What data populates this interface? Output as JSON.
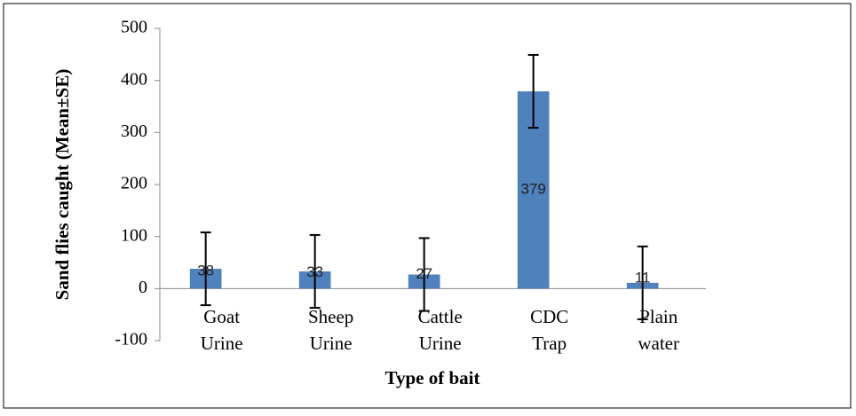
{
  "chart_data": {
    "type": "bar",
    "y_label": "Sand flies caught (Mean±SE)",
    "x_label": "Type of bait",
    "categories": [
      [
        "Goat",
        "Urine"
      ],
      [
        "Sheep",
        "Urine"
      ],
      [
        "Cattle",
        "Urine"
      ],
      [
        "CDC",
        "Trap"
      ],
      [
        "Plain",
        "water"
      ]
    ],
    "values": [
      38,
      33,
      27,
      379,
      11
    ],
    "errors": [
      70,
      70,
      70,
      70,
      70
    ],
    "color": "#4f81bd",
    "ylim": [
      -100,
      500
    ],
    "yticks": [
      -100,
      0,
      100,
      200,
      300,
      400,
      500
    ],
    "grid": false
  }
}
